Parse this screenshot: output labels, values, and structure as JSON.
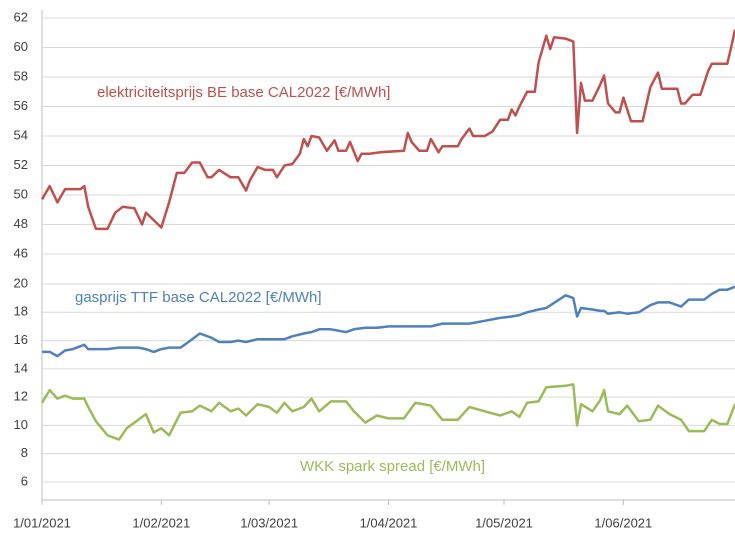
{
  "chart_data": [
    {
      "type": "line",
      "ylim": [
        46,
        62
      ],
      "yticks": [
        46,
        48,
        50,
        52,
        54,
        56,
        58,
        60,
        62
      ],
      "grid": true,
      "xlim": [
        "2021-01-01",
        "2021-06-30"
      ],
      "x": [
        "2021-01-01",
        "2021-01-03",
        "2021-01-05",
        "2021-01-07",
        "2021-01-11",
        "2021-01-12",
        "2021-01-13",
        "2021-01-15",
        "2021-01-18",
        "2021-01-20",
        "2021-01-22",
        "2021-01-25",
        "2021-01-27",
        "2021-01-28",
        "2021-01-30",
        "2021-02-01",
        "2021-02-03",
        "2021-02-05",
        "2021-02-07",
        "2021-02-09",
        "2021-02-11",
        "2021-02-13",
        "2021-02-14",
        "2021-02-16",
        "2021-02-19",
        "2021-02-21",
        "2021-02-23",
        "2021-02-24",
        "2021-02-26",
        "2021-02-28",
        "2021-03-02",
        "2021-03-03",
        "2021-03-05",
        "2021-03-07",
        "2021-03-09",
        "2021-03-10",
        "2021-03-11",
        "2021-03-12",
        "2021-03-14",
        "2021-03-16",
        "2021-03-18",
        "2021-03-19",
        "2021-03-21",
        "2021-03-22",
        "2021-03-24",
        "2021-03-25",
        "2021-03-27",
        "2021-03-30",
        "2021-04-05",
        "2021-04-06",
        "2021-04-07",
        "2021-04-09",
        "2021-04-11",
        "2021-04-12",
        "2021-04-14",
        "2021-04-15",
        "2021-04-19",
        "2021-04-20",
        "2021-04-22",
        "2021-04-23",
        "2021-04-26",
        "2021-04-28",
        "2021-04-30",
        "2021-05-02",
        "2021-05-03",
        "2021-05-04",
        "2021-05-05",
        "2021-05-07",
        "2021-05-09",
        "2021-05-10",
        "2021-05-12",
        "2021-05-13",
        "2021-05-14",
        "2021-05-17",
        "2021-05-19",
        "2021-05-20",
        "2021-05-21",
        "2021-05-22",
        "2021-05-24",
        "2021-05-26",
        "2021-05-27",
        "2021-05-28",
        "2021-05-30",
        "2021-05-31",
        "2021-06-01",
        "2021-06-03",
        "2021-06-06",
        "2021-06-08",
        "2021-06-10",
        "2021-06-11",
        "2021-06-15",
        "2021-06-16",
        "2021-06-17",
        "2021-06-19",
        "2021-06-21",
        "2021-06-23",
        "2021-06-24",
        "2021-06-28",
        "2021-06-29",
        "2021-06-30"
      ],
      "series": [
        {
          "name": "elektriciteitsprijs BE base CAL2022 [€/MWh]",
          "color": "#c0504d",
          "values": [
            49.7,
            50.6,
            49.5,
            50.4,
            50.4,
            50.6,
            49.2,
            47.7,
            47.7,
            48.8,
            49.2,
            49.1,
            48.0,
            48.8,
            48.3,
            47.8,
            49.5,
            51.5,
            51.5,
            52.2,
            52.2,
            51.2,
            51.2,
            51.7,
            51.2,
            51.2,
            50.3,
            51.0,
            51.9,
            51.7,
            51.7,
            51.2,
            52.0,
            52.1,
            52.8,
            53.8,
            53.3,
            54.0,
            53.9,
            53.0,
            53.7,
            53.0,
            53.0,
            53.6,
            52.3,
            52.8,
            52.8,
            52.9,
            53.0,
            54.2,
            53.6,
            53.0,
            53.0,
            53.8,
            52.9,
            53.3,
            53.3,
            53.8,
            54.5,
            54.0,
            54.0,
            54.3,
            55.1,
            55.1,
            55.8,
            55.4,
            56.0,
            57.0,
            57.0,
            59.0,
            60.8,
            59.9,
            60.7,
            60.6,
            60.4,
            54.2,
            57.6,
            56.4,
            56.4,
            57.5,
            58.1,
            56.2,
            55.6,
            55.6,
            56.6,
            55.0,
            55.0,
            57.3,
            58.3,
            57.2,
            57.2,
            56.2,
            56.2,
            56.8,
            56.8,
            58.4,
            58.9,
            58.9,
            60.0,
            61.2
          ]
        }
      ]
    },
    {
      "type": "line",
      "ylim": [
        6,
        20
      ],
      "yticks": [
        6,
        8,
        10,
        12,
        14,
        16,
        18,
        20
      ],
      "grid": true,
      "xlim": [
        "2021-01-01",
        "2021-06-30"
      ],
      "xticks": [
        {
          "value": "2021-01-01",
          "label": "1/01/2021"
        },
        {
          "value": "2021-02-01",
          "label": "1/02/2021"
        },
        {
          "value": "2021-03-01",
          "label": "1/03/2021"
        },
        {
          "value": "2021-04-01",
          "label": "1/04/2021"
        },
        {
          "value": "2021-05-01",
          "label": "1/05/2021"
        },
        {
          "value": "2021-06-01",
          "label": "1/06/2021"
        }
      ],
      "x": [
        "2021-01-01",
        "2021-01-03",
        "2021-01-05",
        "2021-01-07",
        "2021-01-09",
        "2021-01-12",
        "2021-01-13",
        "2021-01-15",
        "2021-01-18",
        "2021-01-21",
        "2021-01-23",
        "2021-01-26",
        "2021-01-28",
        "2021-01-30",
        "2021-02-01",
        "2021-02-03",
        "2021-02-06",
        "2021-02-09",
        "2021-02-11",
        "2021-02-14",
        "2021-02-16",
        "2021-02-19",
        "2021-02-21",
        "2021-02-23",
        "2021-02-26",
        "2021-03-01",
        "2021-03-03",
        "2021-03-05",
        "2021-03-07",
        "2021-03-10",
        "2021-03-12",
        "2021-03-14",
        "2021-03-17",
        "2021-03-21",
        "2021-03-23",
        "2021-03-26",
        "2021-03-29",
        "2021-04-01",
        "2021-04-05",
        "2021-04-08",
        "2021-04-12",
        "2021-04-15",
        "2021-04-19",
        "2021-04-22",
        "2021-04-26",
        "2021-04-30",
        "2021-05-03",
        "2021-05-05",
        "2021-05-07",
        "2021-05-10",
        "2021-05-12",
        "2021-05-17",
        "2021-05-19",
        "2021-05-20",
        "2021-05-21",
        "2021-05-24",
        "2021-05-26",
        "2021-05-27",
        "2021-05-28",
        "2021-05-31",
        "2021-06-02",
        "2021-06-05",
        "2021-06-08",
        "2021-06-10",
        "2021-06-13",
        "2021-06-16",
        "2021-06-18",
        "2021-06-22",
        "2021-06-24",
        "2021-06-26",
        "2021-06-28",
        "2021-06-30"
      ],
      "series": [
        {
          "name": "gasprijs TTF base CAL2022 [€/MWh]",
          "color": "#4f81bd",
          "values": [
            15.2,
            15.2,
            14.9,
            15.3,
            15.4,
            15.7,
            15.4,
            15.4,
            15.4,
            15.5,
            15.5,
            15.5,
            15.4,
            15.2,
            15.4,
            15.5,
            15.5,
            16.1,
            16.5,
            16.2,
            15.9,
            15.9,
            16.0,
            15.9,
            16.1,
            16.1,
            16.1,
            16.1,
            16.3,
            16.5,
            16.6,
            16.8,
            16.8,
            16.6,
            16.8,
            16.9,
            16.9,
            17.0,
            17.0,
            17.0,
            17.0,
            17.2,
            17.2,
            17.2,
            17.4,
            17.6,
            17.7,
            17.8,
            18.0,
            18.2,
            18.3,
            19.2,
            19.0,
            17.7,
            18.3,
            18.2,
            18.1,
            18.1,
            17.9,
            18.0,
            17.9,
            18.0,
            18.5,
            18.7,
            18.7,
            18.4,
            18.9,
            18.9,
            19.3,
            19.6,
            19.6,
            19.8
          ]
        },
        {
          "name": "WKK spark spread [€/MWh]",
          "color": "#9bbb59",
          "values": [
            11.6,
            12.5,
            11.9,
            12.1,
            11.9,
            11.9,
            11.3,
            10.3,
            9.3,
            9.0,
            9.8,
            10.4,
            10.8,
            9.5,
            9.8,
            9.3,
            10.9,
            11.0,
            11.4,
            11.0,
            11.6,
            11.0,
            11.2,
            10.7,
            11.5,
            11.3,
            10.9,
            11.6,
            11.0,
            11.3,
            11.9,
            11.0,
            11.7,
            11.7,
            11.0,
            10.2,
            10.7,
            10.5,
            10.5,
            11.6,
            11.4,
            10.4,
            10.4,
            11.3,
            11.0,
            10.7,
            11.0,
            10.6,
            11.6,
            11.7,
            12.7,
            12.8,
            12.9,
            10.0,
            11.5,
            11.0,
            11.8,
            12.5,
            11.0,
            10.8,
            11.4,
            10.3,
            10.4,
            11.4,
            10.8,
            10.4,
            9.6,
            9.6,
            10.4,
            10.1,
            10.1,
            11.5
          ]
        }
      ]
    }
  ]
}
